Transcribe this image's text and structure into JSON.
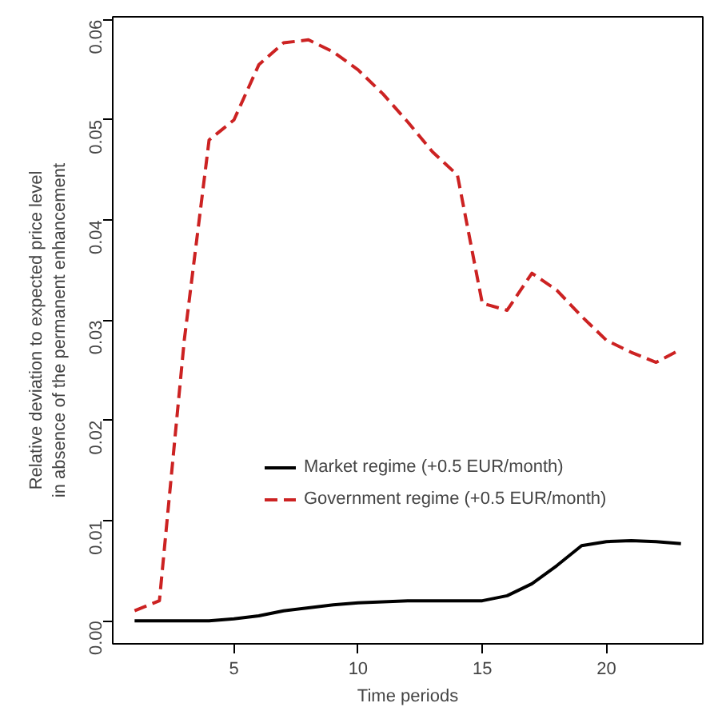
{
  "chart_data": {
    "type": "line",
    "xlabel": "Time periods",
    "ylabel": "Relative deviation to expected price level\nin absence of the permanent enhancement",
    "x": [
      1,
      2,
      3,
      4,
      5,
      6,
      7,
      8,
      9,
      10,
      11,
      12,
      13,
      14,
      15,
      16,
      17,
      18,
      19,
      20,
      21,
      22,
      23
    ],
    "series": [
      {
        "name": "Market regime (+0.5 EUR/month)",
        "color": "#000000",
        "line_style": "solid",
        "values": [
          0,
          0,
          0,
          0,
          0.0002,
          0.0005,
          0.001,
          0.0013,
          0.0016,
          0.0018,
          0.0019,
          0.002,
          0.002,
          0.002,
          0.002,
          0.0025,
          0.0037,
          0.0055,
          0.0075,
          0.0079,
          0.008,
          0.0079,
          0.0077
        ]
      },
      {
        "name": "Government regime (+0.5 EUR/month)",
        "color": "#cc2222",
        "line_style": "dashed",
        "values": [
          0.001,
          0.002,
          0.028,
          0.048,
          0.05,
          0.0555,
          0.0577,
          0.058,
          0.0568,
          0.055,
          0.0526,
          0.0498,
          0.0468,
          0.0445,
          0.0317,
          0.031,
          0.0347,
          0.033,
          0.0304,
          0.028,
          0.0268,
          0.0258,
          0.0271
        ]
      }
    ],
    "xlim": [
      0.12,
      23.88
    ],
    "ylim": [
      -0.0023,
      0.0603
    ],
    "xticks": [
      5,
      10,
      15,
      20
    ],
    "yticks": [
      {
        "value": 0,
        "label": "0.00"
      },
      {
        "value": 0.01,
        "label": "0.01"
      },
      {
        "value": 0.02,
        "label": "0.02"
      },
      {
        "value": 0.03,
        "label": "0.03"
      },
      {
        "value": 0.04,
        "label": "0.04"
      },
      {
        "value": 0.05,
        "label": "0.05"
      },
      {
        "value": 0.06,
        "label": "0.06"
      }
    ],
    "grid": false,
    "legend": "right"
  }
}
